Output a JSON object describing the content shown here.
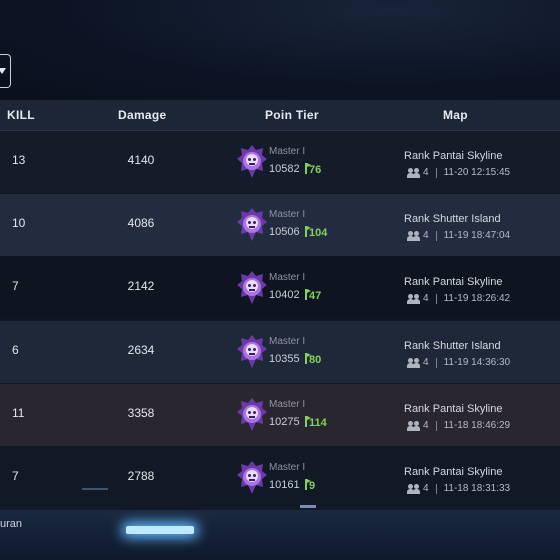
{
  "header": {
    "kill": "KILL",
    "damage": "Damage",
    "tier": "Poin Tier",
    "map": "Map"
  },
  "rows": [
    {
      "kill": "13",
      "damage": "4140",
      "tier": "Master I",
      "points": "10582",
      "delta": "76",
      "map": "Rank Pantai Skyline",
      "players": "4",
      "time": "11-20 12:15:45"
    },
    {
      "kill": "10",
      "damage": "4086",
      "tier": "Master I",
      "points": "10506",
      "delta": "104",
      "map": "Rank Shutter Island",
      "players": "4",
      "time": "11-19 18:47:04"
    },
    {
      "kill": "7",
      "damage": "2142",
      "tier": "Master I",
      "points": "10402",
      "delta": "47",
      "map": "Rank Pantai Skyline",
      "players": "4",
      "time": "11-19 18:26:42"
    },
    {
      "kill": "6",
      "damage": "2634",
      "tier": "Master I",
      "points": "10355",
      "delta": "80",
      "map": "Rank Shutter Island",
      "players": "4",
      "time": "11-19 14:36:30"
    },
    {
      "kill": "11",
      "damage": "3358",
      "tier": "Master I",
      "points": "10275",
      "delta": "114",
      "map": "Rank Pantai Skyline",
      "players": "4",
      "time": "11-18 18:46:29"
    },
    {
      "kill": "7",
      "damage": "2788",
      "tier": "Master I",
      "points": "10161",
      "delta": "9",
      "map": "Rank Pantai Skyline",
      "players": "4",
      "time": "11-18 18:31:33"
    }
  ],
  "footer": {
    "text": "uran"
  },
  "colors": {
    "delta_green": "#7fd25a",
    "tier_purple": "#9b5cd6",
    "header_bg": "#1d2637"
  }
}
